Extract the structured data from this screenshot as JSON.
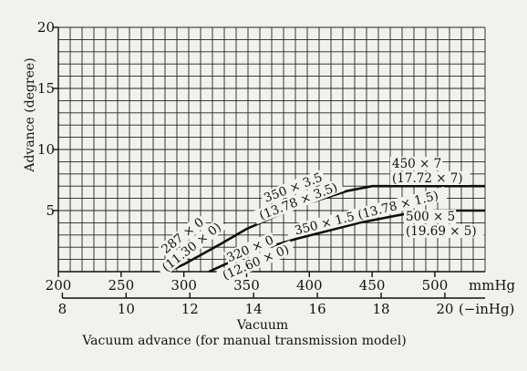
{
  "chart_data": {
    "type": "line",
    "title": "Vacuum advance (for manual transmission model)",
    "xlabel": "Vacuum",
    "ylabel": "Advance (degree)",
    "x_units_primary": "mmHg",
    "x_units_secondary": "(−inHg)",
    "xlim": [
      200,
      540
    ],
    "ylim": [
      0,
      20
    ],
    "x_ticks_mmHg": [
      "200",
      "250",
      "300",
      "350",
      "400",
      "450",
      "500"
    ],
    "x_ticks_inHg": [
      {
        "label": "8",
        "mmHg": 203.2
      },
      {
        "label": "10",
        "mmHg": 254
      },
      {
        "label": "12",
        "mmHg": 304.8
      },
      {
        "label": "14",
        "mmHg": 355.6
      },
      {
        "label": "16",
        "mmHg": 406.4
      },
      {
        "label": "18",
        "mmHg": 457.2
      },
      {
        "label": "20",
        "mmHg": 508
      }
    ],
    "y_ticks": [
      "5",
      "10",
      "15",
      "20"
    ],
    "y_tick_values": [
      5,
      10,
      15,
      20
    ],
    "grid": true,
    "series": [
      {
        "x": [
          287,
          300,
          330,
          350,
          390,
          430,
          450,
          540
        ],
        "y": [
          0,
          0.6,
          2.3,
          3.5,
          5.3,
          6.6,
          7,
          7
        ]
      },
      {
        "x": [
          320,
          335,
          350,
          390,
          440,
          480,
          500,
          540
        ],
        "y": [
          0,
          0.7,
          1.5,
          2.7,
          4.0,
          4.8,
          5,
          5
        ]
      }
    ],
    "annotations": [
      {
        "id": "a1",
        "lines": [
          "287 × 0",
          "(11.30 × 0)"
        ]
      },
      {
        "id": "a2",
        "lines": [
          "350 × 3.5",
          "(13.78 × 3.5)"
        ]
      },
      {
        "id": "a3",
        "lines": [
          "450 × 7",
          "(17.72 × 7)"
        ]
      },
      {
        "id": "a4",
        "lines": [
          "320 × 0",
          "(12.60 × 0)"
        ]
      },
      {
        "id": "a5",
        "lines": [
          "350 × 1.5 (13.78 × 1.5)"
        ]
      },
      {
        "id": "a6",
        "lines": [
          "500 × 5",
          "(19.69 × 5)"
        ]
      }
    ]
  }
}
